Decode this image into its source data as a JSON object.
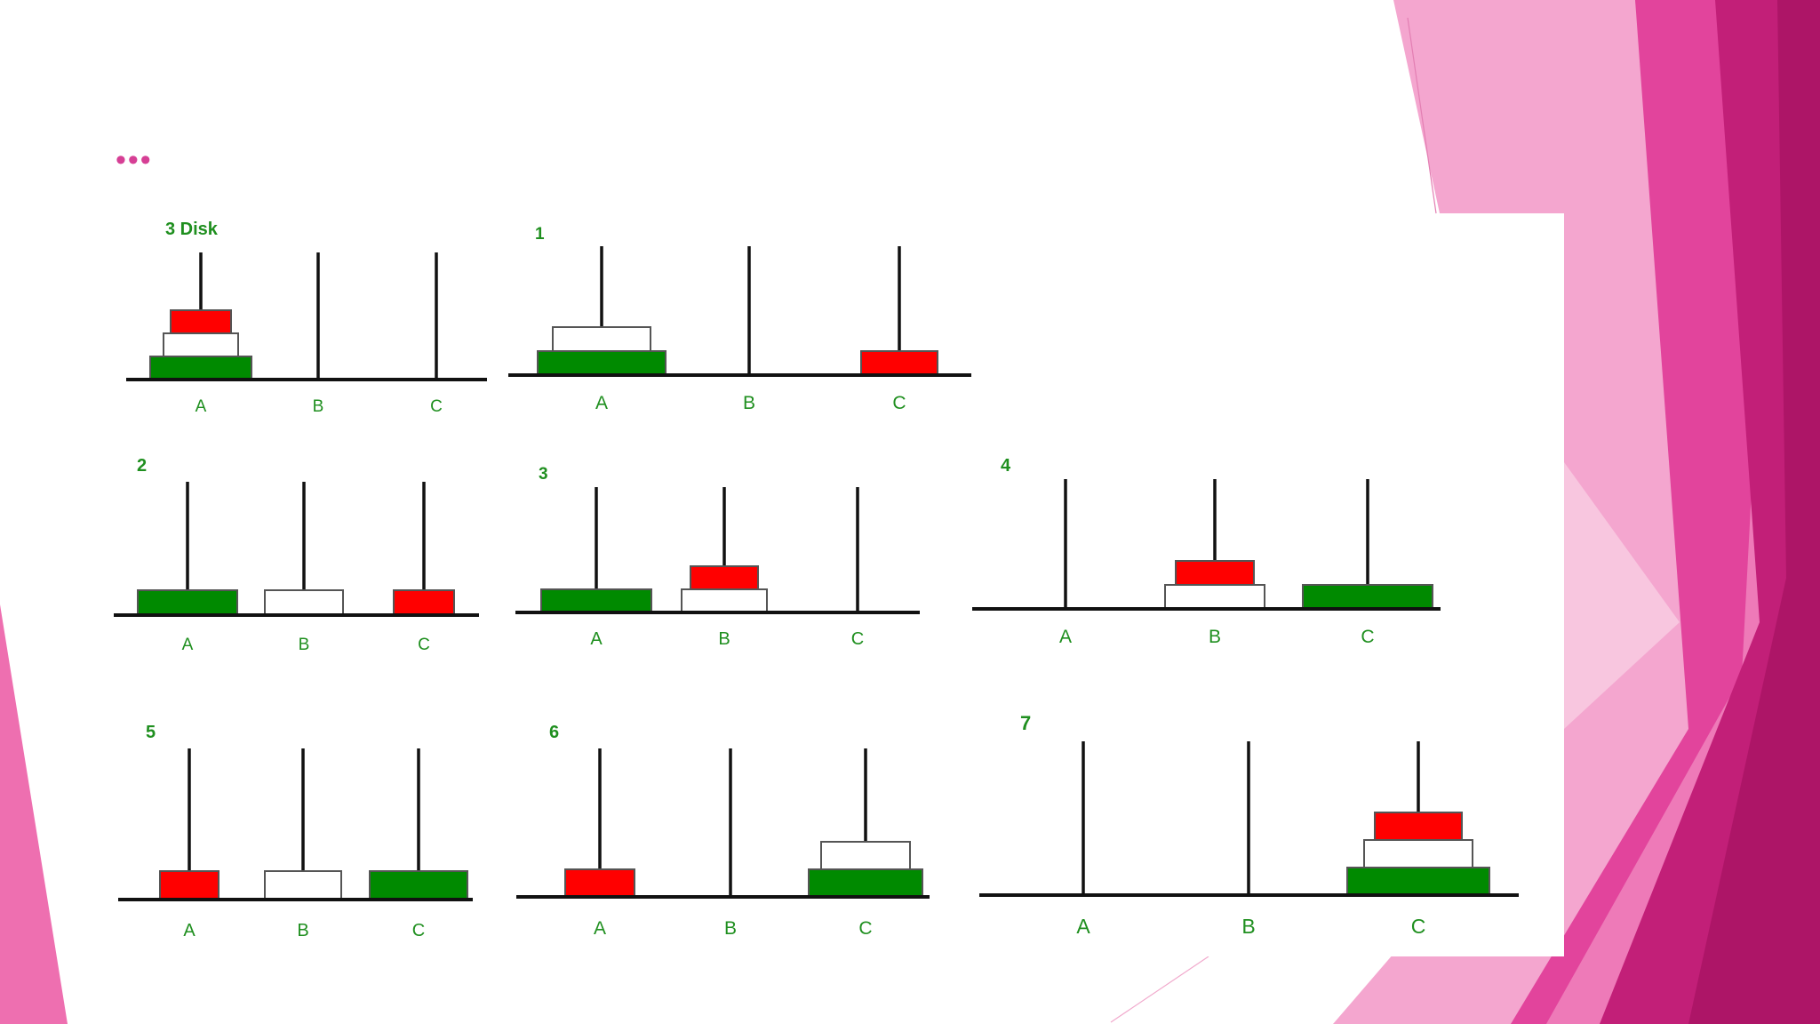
{
  "slide": {
    "menu_dots": "•••",
    "colors": {
      "pink_light": "#f4a6cf",
      "pink_mid": "#ee7ab8",
      "pink_hot": "#e2449c",
      "magenta": "#c21f78",
      "magenta_dark": "#ad1567",
      "disk_red": "#ff0000",
      "disk_white": "#ffffff",
      "disk_green": "#008a00",
      "label_green": "#1f8f1f",
      "rod": "#111111"
    }
  },
  "diagram": {
    "disk_names": [
      "red",
      "white",
      "green"
    ],
    "pegs": [
      "A",
      "B",
      "C"
    ],
    "panels": [
      {
        "label": "3 Disk",
        "stacks": {
          "A": [
            "green",
            "white",
            "red"
          ],
          "B": [],
          "C": []
        }
      },
      {
        "label": "1",
        "stacks": {
          "A": [
            "green",
            "white"
          ],
          "B": [],
          "C": [
            "red"
          ]
        }
      },
      {
        "label": "2",
        "stacks": {
          "A": [
            "green"
          ],
          "B": [
            "white"
          ],
          "C": [
            "red"
          ]
        }
      },
      {
        "label": "3",
        "stacks": {
          "A": [
            "green"
          ],
          "B": [
            "white",
            "red"
          ],
          "C": []
        }
      },
      {
        "label": "4",
        "stacks": {
          "A": [],
          "B": [
            "white",
            "red"
          ],
          "C": [
            "green"
          ]
        }
      },
      {
        "label": "5",
        "stacks": {
          "A": [
            "red"
          ],
          "B": [
            "white"
          ],
          "C": [
            "green"
          ]
        }
      },
      {
        "label": "6",
        "stacks": {
          "A": [
            "red"
          ],
          "B": [],
          "C": [
            "green",
            "white"
          ]
        }
      },
      {
        "label": "7",
        "stacks": {
          "A": [],
          "B": [],
          "C": [
            "green",
            "white",
            "red"
          ]
        }
      }
    ]
  }
}
